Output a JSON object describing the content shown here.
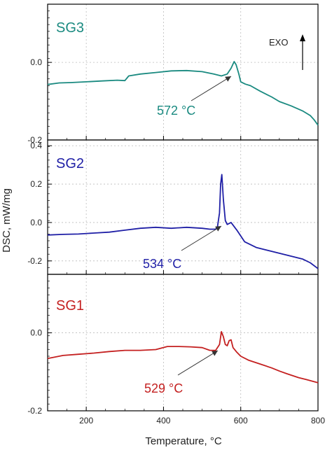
{
  "chart_data": {
    "type": "line",
    "ylabel": "DSC, mW/mg",
    "xlabel": "Temperature, °C",
    "xlim": [
      100,
      800
    ],
    "x_ticks": [
      "200",
      "400",
      "600",
      "800"
    ],
    "exo_label": "EXO",
    "panels": [
      {
        "name": "SG3",
        "color": "#1a8a80",
        "ylim": [
          -0.2,
          0.15
        ],
        "y_ticks": [
          "0.0",
          "-0.2"
        ],
        "annotation": "572 °C",
        "series": [
          {
            "x": [
              100,
              130,
              160,
              200,
              240,
              280,
              300,
              310,
              340,
              380,
              420,
              460,
              500,
              530,
              550,
              565,
              575,
              583,
              588,
              595,
              600,
              612,
              625,
              650,
              680,
              700,
              730,
              760,
              780,
              790,
              800
            ],
            "y": [
              -0.057,
              -0.053,
              -0.052,
              -0.05,
              -0.048,
              -0.046,
              -0.047,
              -0.035,
              -0.03,
              -0.026,
              -0.022,
              -0.021,
              -0.024,
              -0.03,
              -0.035,
              -0.03,
              -0.015,
              0.002,
              -0.006,
              -0.03,
              -0.05,
              -0.056,
              -0.06,
              -0.074,
              -0.089,
              -0.101,
              -0.112,
              -0.125,
              -0.137,
              -0.148,
              -0.162
            ]
          }
        ]
      },
      {
        "name": "SG2",
        "color": "#1f1fa6",
        "ylim": [
          -0.27,
          0.43
        ],
        "y_ticks": [
          "0.4",
          "0.2",
          "0.0",
          "-0.2"
        ],
        "annotation": "534 °C",
        "series": [
          {
            "x": [
              100,
              140,
              180,
              220,
              260,
              300,
              340,
              380,
              420,
              460,
              500,
              520,
              535,
              540,
              545,
              548,
              551,
              555,
              560,
              565,
              575,
              590,
              610,
              640,
              680,
              720,
              760,
              780,
              800
            ],
            "y": [
              -0.065,
              -0.062,
              -0.06,
              -0.055,
              -0.05,
              -0.04,
              -0.03,
              -0.025,
              -0.03,
              -0.025,
              -0.03,
              -0.035,
              -0.035,
              -0.02,
              0.05,
              0.2,
              0.25,
              0.12,
              0.01,
              -0.01,
              0.0,
              -0.04,
              -0.1,
              -0.13,
              -0.15,
              -0.17,
              -0.19,
              -0.21,
              -0.24
            ]
          }
        ]
      },
      {
        "name": "SG1",
        "color": "#c42020",
        "ylim": [
          -0.2,
          0.15
        ],
        "y_ticks": [
          "0.0",
          "-0.2"
        ],
        "annotation": "529 °C",
        "series": [
          {
            "x": [
              100,
              140,
              180,
              220,
              260,
              300,
              340,
              380,
              410,
              440,
              470,
              500,
              520,
              535,
              545,
              550,
              555,
              560,
              565,
              570,
              575,
              580,
              590,
              600,
              620,
              650,
              680,
              700,
              720,
              750,
              770,
              800
            ],
            "y": [
              -0.066,
              -0.058,
              -0.055,
              -0.052,
              -0.048,
              -0.045,
              -0.045,
              -0.043,
              -0.035,
              -0.035,
              -0.036,
              -0.038,
              -0.045,
              -0.045,
              -0.03,
              0.003,
              -0.01,
              -0.03,
              -0.033,
              -0.02,
              -0.018,
              -0.038,
              -0.05,
              -0.06,
              -0.07,
              -0.08,
              -0.09,
              -0.098,
              -0.105,
              -0.115,
              -0.12,
              -0.128
            ]
          }
        ]
      }
    ]
  }
}
